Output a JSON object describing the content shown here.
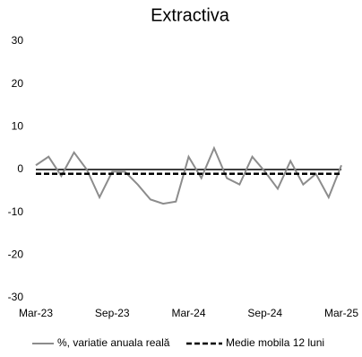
{
  "chart_data": {
    "type": "line",
    "title": "Extractiva",
    "categories": [
      "Mar-23",
      null,
      null,
      null,
      null,
      null,
      "Sep-23",
      null,
      null,
      null,
      null,
      null,
      "Mar-24",
      null,
      null,
      null,
      null,
      null,
      "Sep-24",
      null,
      null,
      null,
      null,
      null,
      "Mar-25"
    ],
    "series": [
      {
        "name": "%, variatie anuala reală",
        "color": "#8c8c8c",
        "dashed": false,
        "values": [
          1,
          3,
          -1.5,
          4,
          0,
          -6.5,
          -0.5,
          -0.5,
          -3.5,
          -7,
          -8,
          -7.5,
          3,
          -2,
          5,
          -2,
          -3.5,
          3,
          -0.5,
          -4.5,
          2,
          -3.5,
          -1,
          -6.5,
          1
        ]
      },
      {
        "name": "Medie  mobila 12 luni",
        "color": "#000000",
        "dashed": true,
        "values": [
          -1,
          -1,
          -1,
          -1,
          -1,
          -1,
          -1,
          -1,
          -1,
          -1,
          -1,
          -1,
          -1,
          -1,
          -1,
          -1,
          -1,
          -1,
          -1,
          -1,
          -1,
          -1,
          -1,
          -1,
          -1
        ]
      }
    ],
    "ylim": [
      -30,
      30
    ],
    "yticks": [
      -30,
      -20,
      -10,
      0,
      10,
      20,
      30
    ],
    "grid": false,
    "legend": "bottom"
  }
}
